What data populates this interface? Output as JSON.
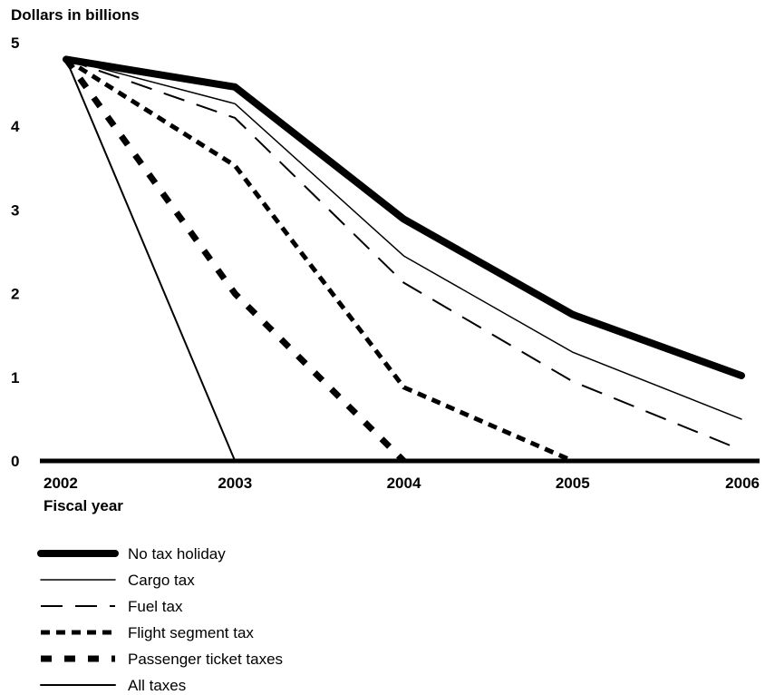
{
  "chart_data": {
    "type": "line",
    "ylabel": "Dollars in billions",
    "xlabel": "Fiscal year",
    "x": [
      "2002",
      "2003",
      "2004",
      "2005",
      "2006"
    ],
    "y_ticks": [
      "0",
      "1",
      "2",
      "3",
      "4",
      "5"
    ],
    "ylim": [
      0,
      5
    ],
    "grid": false,
    "legend_position": "bottom",
    "series": [
      {
        "name": "No tax holiday",
        "style": "thick-solid",
        "values": [
          4.8,
          4.47,
          2.89,
          1.75,
          1.02
        ]
      },
      {
        "name": "Cargo tax",
        "style": "thin-solid",
        "values": [
          4.8,
          4.27,
          2.45,
          1.3,
          0.5
        ]
      },
      {
        "name": "Fuel tax",
        "style": "long-dash",
        "values": [
          4.8,
          4.1,
          2.13,
          0.95,
          0.13
        ]
      },
      {
        "name": "Flight segment tax",
        "style": "short-dash",
        "values": [
          4.8,
          3.53,
          0.88,
          0,
          null
        ]
      },
      {
        "name": "Passenger ticket taxes",
        "style": "heavy-dash",
        "values": [
          4.8,
          2.0,
          0,
          null,
          null
        ]
      },
      {
        "name": "All taxes",
        "style": "medium-solid",
        "values": [
          4.8,
          0,
          null,
          null,
          null
        ]
      }
    ]
  }
}
